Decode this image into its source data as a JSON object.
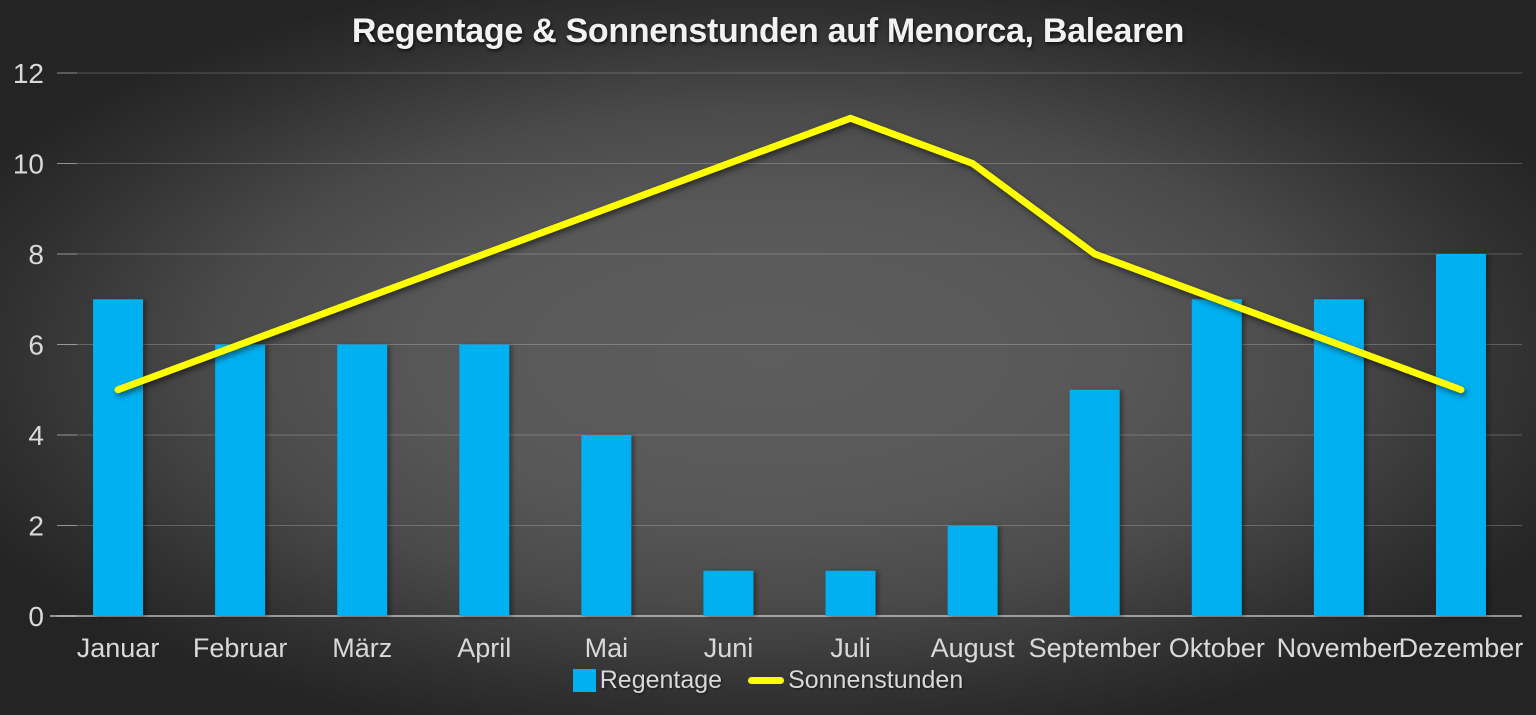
{
  "colors": {
    "background_center": "#5d5d5d",
    "background_edge": "#242424",
    "bar": "#00B0F0",
    "line": "#FFFF00",
    "axis_text": "#D9D9D9",
    "title_text": "#F2F2F2",
    "gridline": "rgba(255,255,255,0.22)",
    "tick": "rgba(255,255,255,0.35)",
    "axis_line": "rgba(255,255,255,0.5)"
  },
  "chart_data": {
    "type": "combo",
    "title": "Regentage & Sonnenstunden auf Menorca, Balearen",
    "categories": [
      "Januar",
      "Februar",
      "März",
      "April",
      "Mai",
      "Juni",
      "Juli",
      "August",
      "September",
      "Oktober",
      "November",
      "Dezember"
    ],
    "series": [
      {
        "name": "Regentage",
        "type": "bar",
        "color": "#00B0F0",
        "values": [
          7,
          6,
          6,
          6,
          4,
          1,
          1,
          2,
          5,
          7,
          7,
          8
        ]
      },
      {
        "name": "Sonnenstunden",
        "type": "line",
        "color": "#FFFF00",
        "values": [
          5,
          6,
          7,
          8,
          9,
          10,
          11,
          10,
          8,
          7,
          6,
          5
        ]
      }
    ],
    "xlabel": "",
    "ylabel": "",
    "ylim": [
      0,
      12
    ],
    "yticks": [
      0,
      2,
      4,
      6,
      8,
      10,
      12
    ],
    "grid": true,
    "legend_position": "bottom"
  },
  "legend": {
    "items": [
      {
        "label": "Regentage",
        "swatch": "square",
        "color": "#00B0F0"
      },
      {
        "label": "Sonnenstunden",
        "swatch": "line",
        "color": "#FFFF00"
      }
    ]
  }
}
